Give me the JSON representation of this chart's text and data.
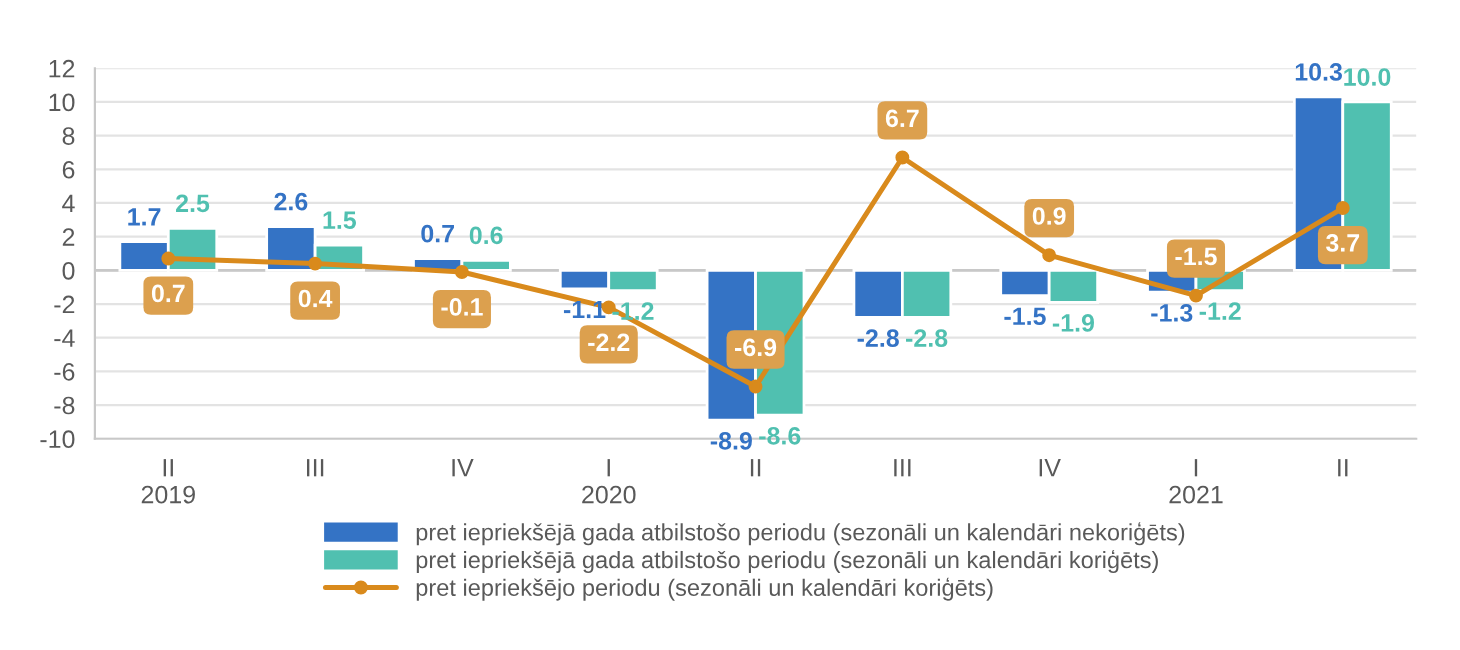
{
  "chart_data": {
    "type": "bar",
    "categories": [
      "II\n2019",
      "III",
      "IV",
      "I\n2020",
      "II",
      "III",
      "IV",
      "I\n2021",
      "II"
    ],
    "series": [
      {
        "name": "pret iepriekšējā gada atbilstošo periodu (sezonāli un kalendāri nekoriģēts)",
        "color": "#3473c5",
        "values": [
          1.7,
          2.6,
          0.7,
          -1.1,
          -8.9,
          -2.8,
          -1.5,
          -1.3,
          10.3
        ],
        "value_labels": [
          "1.7",
          "2.6",
          "0.7",
          "-1.1",
          "-8.9",
          "-2.8",
          "-1.5",
          "-1.3",
          "10.3"
        ]
      },
      {
        "name": "pret iepriekšējā gada atbilstošo periodu (sezonāli un kalendāri koriģēts)",
        "color": "#50c0b0",
        "values": [
          2.5,
          1.5,
          0.6,
          -1.2,
          -8.6,
          -2.8,
          -1.9,
          -1.2,
          10.0
        ],
        "value_labels": [
          "2.5",
          "1.5",
          "0.6",
          "-1.2",
          "-8.6",
          "-2.8",
          "-1.9",
          "-1.2",
          "10.0"
        ]
      },
      {
        "name": "pret iepriekšējo periodu (sezonāli un kalendāri koriģēts)",
        "type": "line",
        "color": "#d98a1c",
        "marker": "circle",
        "values": [
          0.7,
          0.4,
          -0.1,
          -2.2,
          -6.9,
          6.7,
          0.9,
          -1.5,
          3.7
        ],
        "value_labels": [
          "0.7",
          "0.4",
          "-0.1",
          "-2.2",
          "-6.9",
          "6.7",
          "0.9",
          "-1.5",
          "3.7"
        ]
      }
    ],
    "ylim": [
      -10,
      12
    ],
    "yticks": [
      -10,
      -8,
      -6,
      -4,
      -2,
      0,
      2,
      4,
      6,
      8,
      10,
      12
    ],
    "grid": "y",
    "legend": "bottom"
  }
}
